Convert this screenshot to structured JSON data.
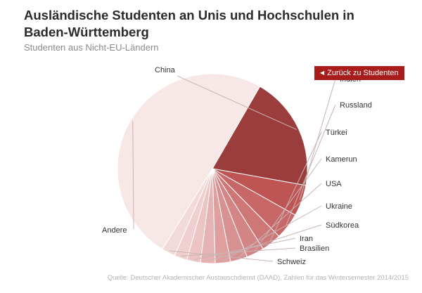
{
  "header": {
    "title": "Ausländische Studenten an Unis und Hochschulen in Baden-Württemberg",
    "subtitle": "Studenten aus Nicht-EU-Ländern"
  },
  "controls": {
    "back_label": "Zurück zu Studenten"
  },
  "footer": {
    "source": "Quelle: Deutscher Akademischer Austauschdienst (DAAD), Zahlen für das Wintersemester 2014/2015"
  },
  "colors": {
    "accent": "#a81c1c",
    "leader_line": "#c8b4b4"
  },
  "chart_data": {
    "type": "pie",
    "legend": "none",
    "slices": [
      {
        "label": "China",
        "value": 19.5,
        "color": "#9c3d3d"
      },
      {
        "label": "Indien",
        "value": 5.3,
        "color": "#be5454"
      },
      {
        "label": "Russland",
        "value": 4.5,
        "color": "#c76767"
      },
      {
        "label": "Türkei",
        "value": 3.4,
        "color": "#cd7777"
      },
      {
        "label": "Kamerun",
        "value": 3.0,
        "color": "#d38585"
      },
      {
        "label": "USA",
        "value": 2.9,
        "color": "#d89191"
      },
      {
        "label": "Ukraine",
        "value": 2.6,
        "color": "#df9f9f"
      },
      {
        "label": "Südkorea",
        "value": 2.5,
        "color": "#e5b3b3"
      },
      {
        "label": "Iran",
        "value": 2.3,
        "color": "#ebc4c4"
      },
      {
        "label": "Brasilien",
        "value": 2.2,
        "color": "#efcfcf"
      },
      {
        "label": "Schweiz",
        "value": 2.3,
        "color": "#f3dada"
      },
      {
        "label": "Andere",
        "value": 49.5,
        "color": "#f7e7e7"
      }
    ]
  }
}
